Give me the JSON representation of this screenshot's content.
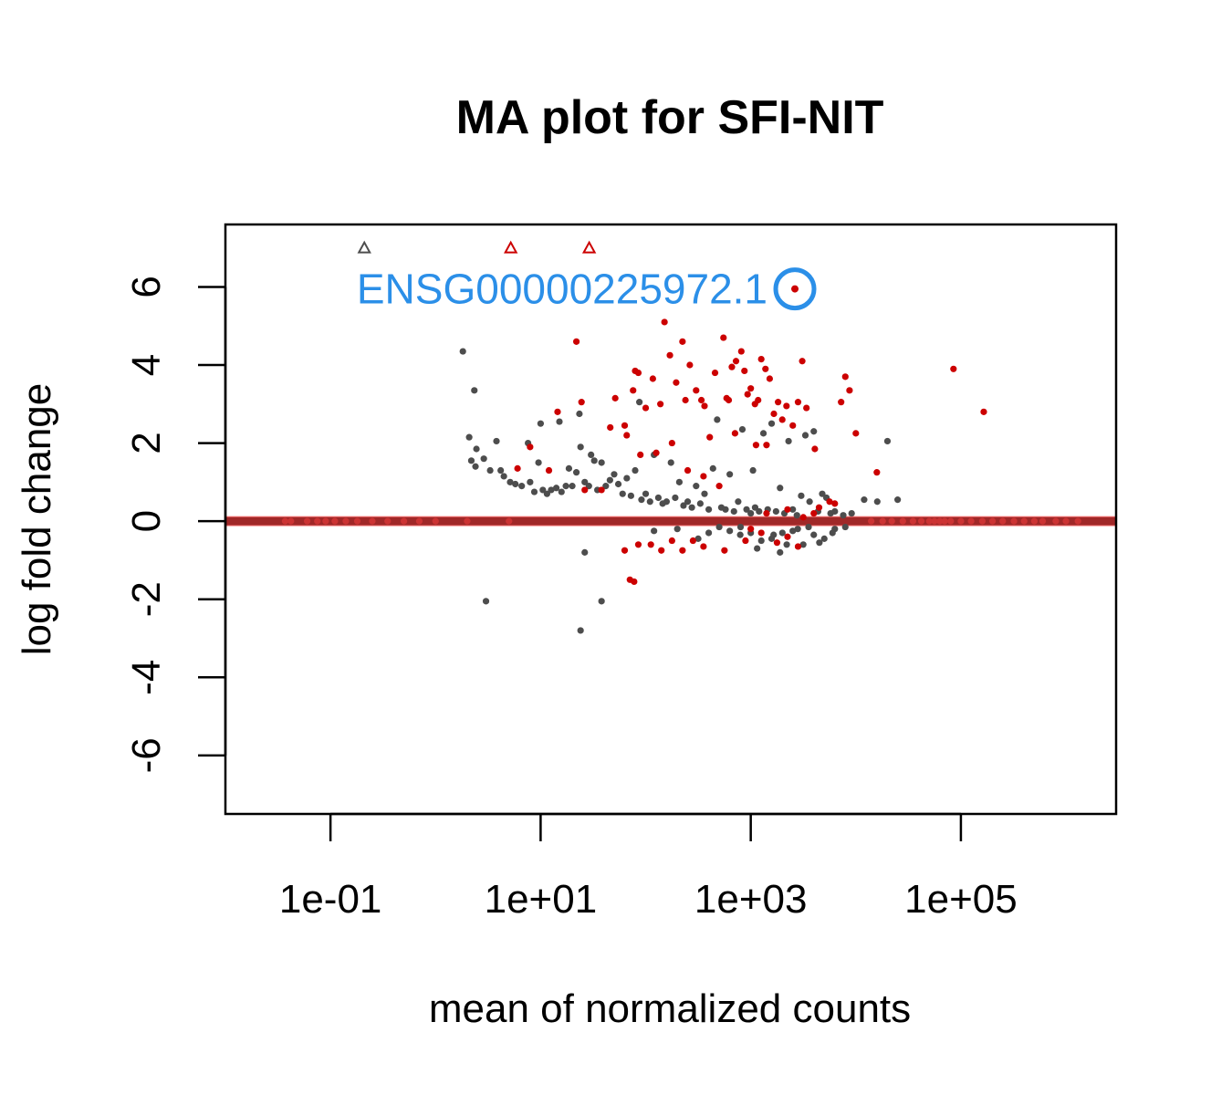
{
  "chart_data": {
    "type": "scatter",
    "title": "MA plot for SFI-NIT",
    "xlabel": "mean of normalized counts",
    "ylabel": "log fold change",
    "x_scale": "log10",
    "xlim": [
      0.01,
      3000000
    ],
    "ylim": [
      -7.5,
      7.6
    ],
    "x_ticks": [
      {
        "value": 0.1,
        "label": "1e-01"
      },
      {
        "value": 10,
        "label": "1e+01"
      },
      {
        "value": 1000,
        "label": "1e+03"
      },
      {
        "value": 100000,
        "label": "1e+05"
      }
    ],
    "y_ticks": [
      {
        "value": -6,
        "label": "-6"
      },
      {
        "value": -4,
        "label": "-4"
      },
      {
        "value": -2,
        "label": "-2"
      },
      {
        "value": 0,
        "label": "0"
      },
      {
        "value": 2,
        "label": "2"
      },
      {
        "value": 4,
        "label": "4"
      },
      {
        "value": 6,
        "label": "6"
      }
    ],
    "grid": false,
    "colors": {
      "not_significant": "#4d4d4d",
      "significant": "#cc0000",
      "zero_line": "#ff8080",
      "highlight": "#2b8fe8"
    },
    "reference_line": {
      "y": 0
    },
    "series": [
      {
        "points": [
          [
            1.82,
            4.35
          ],
          [
            2.09,
            2.15
          ],
          [
            2.34,
            3.35
          ],
          [
            2.45,
            1.85
          ],
          [
            2.19,
            1.55
          ],
          [
            2.4,
            1.4
          ],
          [
            2.88,
            1.6
          ],
          [
            3.31,
            1.3
          ],
          [
            3.8,
            2.05
          ],
          [
            4.17,
            1.3
          ],
          [
            4.47,
            1.15
          ],
          [
            5.13,
            1.0
          ],
          [
            5.75,
            0.95
          ],
          [
            6.61,
            0.9
          ],
          [
            7.59,
            2.0
          ],
          [
            7.94,
            1.0
          ],
          [
            8.71,
            0.75
          ],
          [
            9.55,
            1.5
          ],
          [
            10.0,
            2.5
          ],
          [
            10.5,
            0.8
          ],
          [
            11.5,
            0.7
          ],
          [
            12.6,
            0.8
          ],
          [
            14.1,
            0.85
          ],
          [
            15.1,
            2.55
          ],
          [
            15.8,
            0.75
          ],
          [
            17.4,
            0.9
          ],
          [
            18.6,
            1.35
          ],
          [
            20.0,
            0.9
          ],
          [
            21.9,
            1.25
          ],
          [
            23.4,
            2.75
          ],
          [
            24.0,
            1.9
          ],
          [
            26.3,
            1.0
          ],
          [
            28.8,
            0.9
          ],
          [
            30.2,
            1.7
          ],
          [
            32.4,
            1.55
          ],
          [
            34.7,
            0.8
          ],
          [
            38.0,
            1.5
          ],
          [
            41.7,
            0.9
          ],
          [
            45.7,
            1.05
          ],
          [
            50.1,
            1.2
          ],
          [
            54.9,
            0.95
          ],
          [
            60.3,
            0.7
          ],
          [
            66.1,
            1.1
          ],
          [
            72.4,
            0.65
          ],
          [
            79.4,
            1.3
          ],
          [
            87.1,
            3.05
          ],
          [
            91.2,
            0.55
          ],
          [
            100,
            0.7
          ],
          [
            110,
            0.5
          ],
          [
            120,
            1.7
          ],
          [
            132,
            0.6
          ],
          [
            145,
            0.45
          ],
          [
            158,
            0.5
          ],
          [
            174,
            1.5
          ],
          [
            191,
            0.6
          ],
          [
            209,
            1.0
          ],
          [
            229,
            0.4
          ],
          [
            251,
            0.5
          ],
          [
            275,
            0.35
          ],
          [
            302,
            0.9
          ],
          [
            331,
            0.45
          ],
          [
            363,
            0.7
          ],
          [
            398,
            0.3
          ],
          [
            437,
            1.35
          ],
          [
            479,
            2.6
          ],
          [
            525,
            0.35
          ],
          [
            575,
            0.3
          ],
          [
            631,
            1.2
          ],
          [
            692,
            0.25
          ],
          [
            759,
            0.5
          ],
          [
            832,
            2.35
          ],
          [
            912,
            0.3
          ],
          [
            1000,
            0.2
          ],
          [
            1050,
            1.3
          ],
          [
            1100,
            0.35
          ],
          [
            1200,
            0.25
          ],
          [
            1320,
            2.25
          ],
          [
            1450,
            0.3
          ],
          [
            1580,
            2.5
          ],
          [
            1740,
            0.25
          ],
          [
            1900,
            0.85
          ],
          [
            2090,
            0.2
          ],
          [
            2290,
            2.05
          ],
          [
            2510,
            0.3
          ],
          [
            2750,
            0.15
          ],
          [
            3020,
            0.65
          ],
          [
            3310,
            2.2
          ],
          [
            3630,
            0.5
          ],
          [
            3980,
            2.3
          ],
          [
            4370,
            0.25
          ],
          [
            4790,
            0.7
          ],
          [
            5250,
            0.6
          ],
          [
            5750,
            0.2
          ],
          [
            6310,
            0.25
          ],
          [
            7590,
            0.15
          ],
          [
            9120,
            0.2
          ],
          [
            12000,
            0.55
          ],
          [
            16000,
            0.5
          ],
          [
            20000,
            2.05
          ],
          [
            25000,
            0.55
          ],
          [
            3.02,
            -2.05
          ],
          [
            26.3,
            -0.8
          ],
          [
            24.0,
            -2.8
          ],
          [
            38.0,
            -2.05
          ],
          [
            120,
            -0.25
          ],
          [
            200,
            -0.2
          ],
          [
            316,
            -0.45
          ],
          [
            398,
            -0.3
          ],
          [
            501,
            -0.15
          ],
          [
            631,
            -0.25
          ],
          [
            794,
            -0.35
          ],
          [
            1000,
            -0.3
          ],
          [
            1260,
            -0.5
          ],
          [
            1580,
            -0.45
          ],
          [
            2000,
            -0.3
          ],
          [
            2510,
            -0.25
          ],
          [
            3160,
            -0.6
          ],
          [
            3980,
            -0.35
          ],
          [
            5010,
            -0.45
          ],
          [
            6310,
            -0.2
          ],
          [
            7940,
            -0.15
          ],
          [
            1150,
            -0.7
          ],
          [
            1900,
            -0.8
          ],
          [
            2800,
            -0.2
          ],
          [
            4500,
            -0.55
          ],
          [
            800,
            -0.15
          ],
          [
            1650,
            -0.35
          ],
          [
            3550,
            -0.15
          ],
          [
            6000,
            -0.3
          ],
          [
            2200,
            -0.6
          ]
        ]
      },
      {
        "points": [
          [
            6.03,
            1.35
          ],
          [
            7.94,
            1.9
          ],
          [
            12.0,
            1.3
          ],
          [
            14.5,
            2.8
          ],
          [
            21.9,
            4.6
          ],
          [
            24.5,
            3.05
          ],
          [
            26.3,
            0.8
          ],
          [
            38.0,
            0.8
          ],
          [
            51.3,
            3.15
          ],
          [
            63.1,
            2.45
          ],
          [
            75.9,
            3.35
          ],
          [
            79.4,
            3.85
          ],
          [
            85.1,
            3.8
          ],
          [
            100,
            2.9
          ],
          [
            117,
            3.65
          ],
          [
            138,
            3.0
          ],
          [
            151,
            5.1
          ],
          [
            170,
            4.25
          ],
          [
            195,
            3.55
          ],
          [
            224,
            4.6
          ],
          [
            239,
            3.1
          ],
          [
            263,
            4.0
          ],
          [
            302,
            3.35
          ],
          [
            339,
            3.1
          ],
          [
            363,
            2.95
          ],
          [
            407,
            2.15
          ],
          [
            457,
            3.8
          ],
          [
            550,
            4.7
          ],
          [
            589,
            3.15
          ],
          [
            617,
            3.1
          ],
          [
            661,
            3.95
          ],
          [
            724,
            4.1
          ],
          [
            813,
            4.35
          ],
          [
            871,
            3.85
          ],
          [
            933,
            3.25
          ],
          [
            1000,
            3.4
          ],
          [
            1096,
            3.0
          ],
          [
            1175,
            3.1
          ],
          [
            1259,
            4.15
          ],
          [
            1380,
            3.9
          ],
          [
            1514,
            3.65
          ],
          [
            1660,
            2.75
          ],
          [
            1820,
            3.05
          ],
          [
            1995,
            2.6
          ],
          [
            2188,
            2.95
          ],
          [
            2512,
            2.45
          ],
          [
            2818,
            3.05
          ],
          [
            3090,
            4.1
          ],
          [
            3388,
            2.9
          ],
          [
            4074,
            1.85
          ],
          [
            7244,
            3.05
          ],
          [
            7943,
            3.7
          ],
          [
            8710,
            3.35
          ],
          [
            10000,
            2.25
          ],
          [
            15849,
            1.25
          ],
          [
            85000,
            3.9
          ],
          [
            165000,
            2.8
          ],
          [
            2630,
            5.95
          ],
          [
            46,
            2.4
          ],
          [
            66,
            2.2
          ],
          [
            89,
            1.7
          ],
          [
            126,
            1.75
          ],
          [
            178,
            2.0
          ],
          [
            251,
            1.3
          ],
          [
            355,
            1.15
          ],
          [
            708,
            2.25
          ],
          [
            1122,
            1.95
          ],
          [
            1412,
            1.95
          ],
          [
            501,
            0.9
          ],
          [
            1413,
            0.2
          ],
          [
            2238,
            0.3
          ],
          [
            3162,
            0.1
          ],
          [
            4467,
            0.35
          ],
          [
            5623,
            0.5
          ],
          [
            6310,
            0.45
          ],
          [
            3981,
            0.2
          ],
          [
            63.1,
            -0.75
          ],
          [
            70.8,
            -1.5
          ],
          [
            77.6,
            -1.55
          ],
          [
            85.1,
            -0.6
          ],
          [
            112,
            -0.6
          ],
          [
            141,
            -0.75
          ],
          [
            178,
            -0.5
          ],
          [
            224,
            -0.75
          ],
          [
            282,
            -0.5
          ],
          [
            355,
            -0.65
          ],
          [
            562,
            -0.75
          ],
          [
            891,
            -0.5
          ],
          [
            1259,
            -0.3
          ],
          [
            1778,
            -0.55
          ],
          [
            2239,
            -0.4
          ],
          [
            2818,
            -0.65
          ],
          [
            1000,
            -0.2
          ]
        ]
      }
    ],
    "zero_count_points": [
      0.037,
      0.042,
      0.06,
      0.075,
      0.09,
      0.11,
      0.14,
      0.18,
      0.25,
      0.35,
      0.5,
      0.7,
      1.0,
      2.0,
      5.0,
      14000,
      18000,
      22000,
      28000,
      35000,
      42000,
      50000,
      56000,
      63000,
      70000,
      80000,
      100000,
      125000,
      160000,
      200000,
      250000,
      320000,
      400000,
      500000,
      600000,
      800000,
      1000000,
      1300000
    ],
    "offscale_points": [
      {
        "x": 0.21,
        "y": 7.0,
        "group": "not_significant"
      },
      {
        "x": 5.2,
        "y": 7.0,
        "group": "significant"
      },
      {
        "x": 29.0,
        "y": 7.0,
        "group": "significant"
      }
    ],
    "annotations": [
      {
        "text": "ENSG00000225972.1",
        "x": 2630,
        "y": 5.95,
        "circled": true
      }
    ]
  }
}
